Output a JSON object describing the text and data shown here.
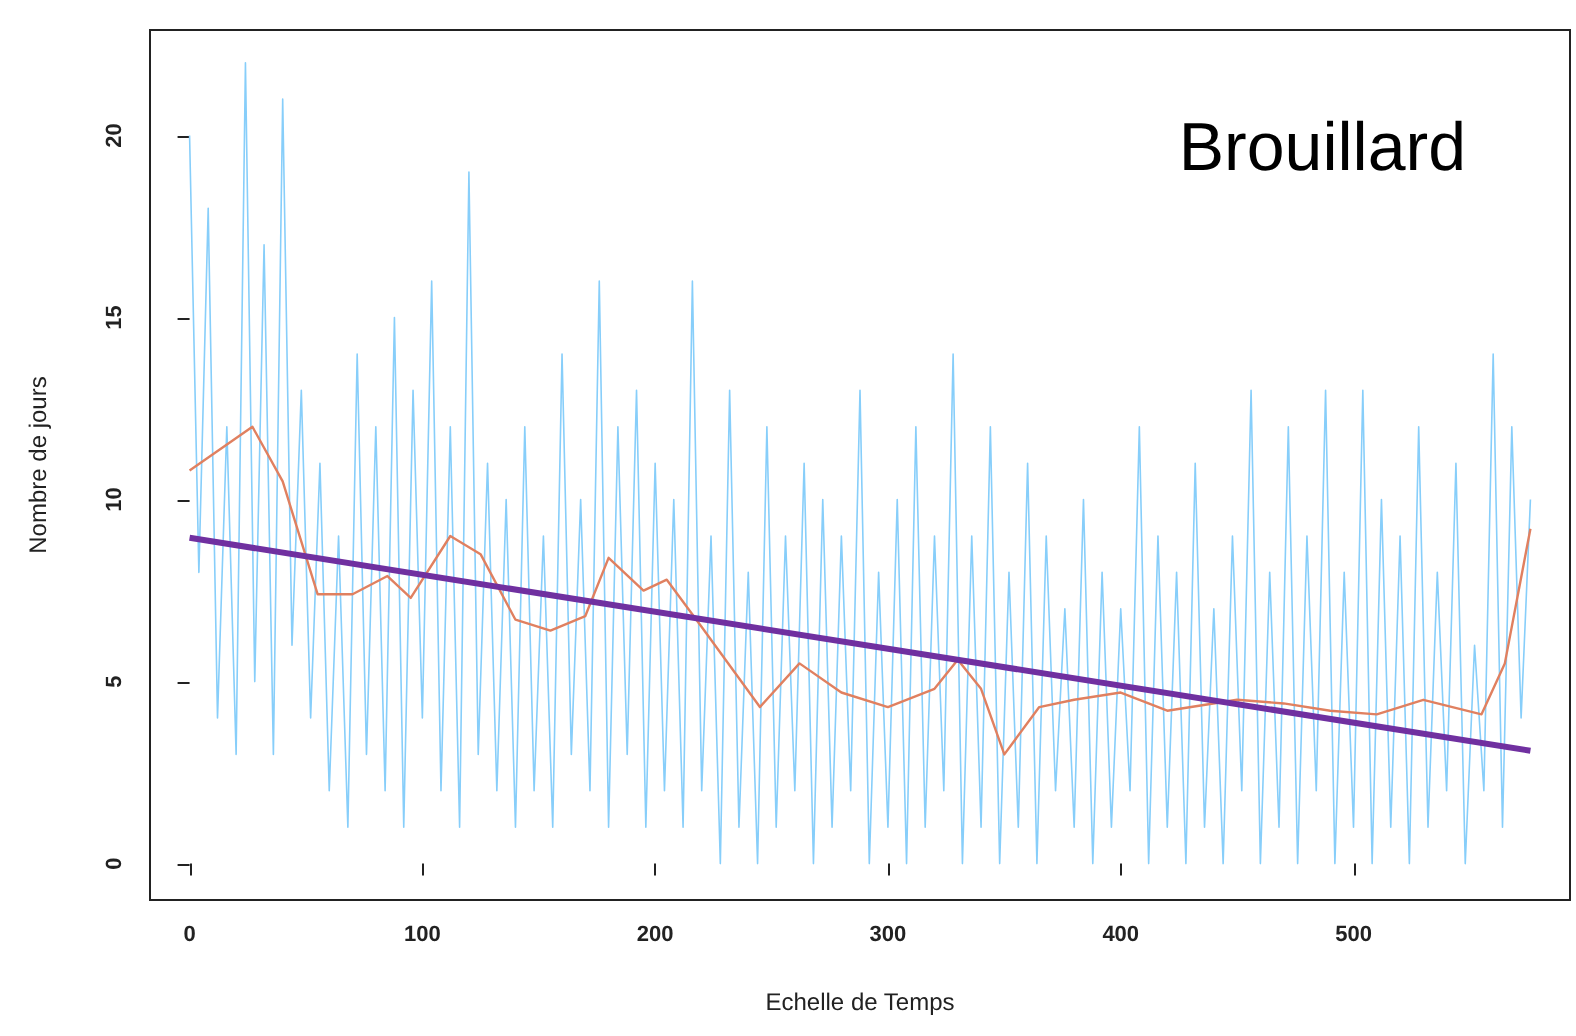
{
  "chart_data": {
    "type": "line",
    "title": "Brouillard",
    "xlabel": "Echelle de Temps",
    "ylabel": "Nombre de jours",
    "xlim": [
      -17,
      593
    ],
    "ylim": [
      -1,
      22.9
    ],
    "xticks": [
      0,
      100,
      200,
      300,
      400,
      500
    ],
    "yticks": [
      0,
      5,
      10,
      15,
      20
    ],
    "grid": false,
    "marker": "none",
    "line_style": "solid",
    "series": [
      {
        "color": "#87cefa",
        "x": [
          0,
          4,
          8,
          12,
          16,
          20,
          24,
          28,
          32,
          36,
          40,
          44,
          48,
          52,
          56,
          60,
          64,
          68,
          72,
          76,
          80,
          84,
          88,
          92,
          96,
          100,
          104,
          108,
          112,
          116,
          120,
          124,
          128,
          132,
          136,
          140,
          144,
          148,
          152,
          156,
          160,
          164,
          168,
          172,
          176,
          180,
          184,
          188,
          192,
          196,
          200,
          204,
          208,
          212,
          216,
          220,
          224,
          228,
          232,
          236,
          240,
          244,
          248,
          252,
          256,
          260,
          264,
          268,
          272,
          276,
          280,
          284,
          288,
          292,
          296,
          300,
          304,
          308,
          312,
          316,
          320,
          324,
          328,
          332,
          336,
          340,
          344,
          348,
          352,
          356,
          360,
          364,
          368,
          372,
          376,
          380,
          384,
          388,
          392,
          396,
          400,
          404,
          408,
          412,
          416,
          420,
          424,
          428,
          432,
          436,
          440,
          444,
          448,
          452,
          456,
          460,
          464,
          468,
          472,
          476,
          480,
          484,
          488,
          492,
          496,
          500,
          504,
          508,
          512,
          516,
          520,
          524,
          528,
          532,
          536,
          540,
          544,
          548,
          552,
          556,
          560,
          564,
          568,
          572,
          576
        ],
        "values": [
          20,
          8,
          18,
          4,
          12,
          3,
          22,
          5,
          17,
          3,
          21,
          6,
          13,
          4,
          11,
          2,
          9,
          1,
          14,
          3,
          12,
          2,
          15,
          1,
          13,
          4,
          16,
          2,
          12,
          1,
          19,
          3,
          11,
          2,
          10,
          1,
          12,
          2,
          9,
          1,
          14,
          3,
          10,
          2,
          16,
          1,
          12,
          3,
          13,
          1,
          11,
          2,
          10,
          1,
          16,
          2,
          9,
          0,
          13,
          1,
          8,
          0,
          12,
          1,
          9,
          2,
          11,
          0,
          10,
          1,
          9,
          2,
          13,
          0,
          8,
          1,
          10,
          0,
          12,
          1,
          9,
          2,
          14,
          0,
          9,
          1,
          12,
          0,
          8,
          1,
          11,
          0,
          9,
          2,
          7,
          1,
          10,
          0,
          8,
          1,
          7,
          2,
          12,
          0,
          9,
          1,
          8,
          0,
          11,
          1,
          7,
          0,
          9,
          2,
          13,
          0,
          8,
          1,
          12,
          0,
          9,
          2,
          13,
          0,
          8,
          1,
          13,
          0,
          10,
          1,
          9,
          0,
          12,
          1,
          8,
          2,
          11,
          0,
          6,
          2,
          14,
          1,
          12,
          4,
          10
        ]
      },
      {
        "color": "#e08060",
        "x": [
          0,
          27,
          40,
          55,
          70,
          85,
          95,
          112,
          125,
          140,
          155,
          170,
          180,
          195,
          205,
          220,
          245,
          262,
          280,
          300,
          320,
          330,
          340,
          350,
          365,
          380,
          400,
          420,
          450,
          470,
          490,
          510,
          530,
          555,
          565,
          576
        ],
        "values": [
          10.8,
          12,
          10.5,
          7.4,
          7.4,
          7.9,
          7.3,
          9,
          8.5,
          6.7,
          6.4,
          6.8,
          8.4,
          7.5,
          7.8,
          6.5,
          4.3,
          5.5,
          4.7,
          4.3,
          4.8,
          5.6,
          4.8,
          3,
          4.3,
          4.5,
          4.7,
          4.2,
          4.5,
          4.4,
          4.2,
          4.1,
          4.5,
          4.1,
          5.5,
          9.2
        ]
      },
      {
        "color": "#7030a0",
        "x": [
          0,
          576
        ],
        "values": [
          8.95,
          3.1
        ]
      }
    ]
  }
}
